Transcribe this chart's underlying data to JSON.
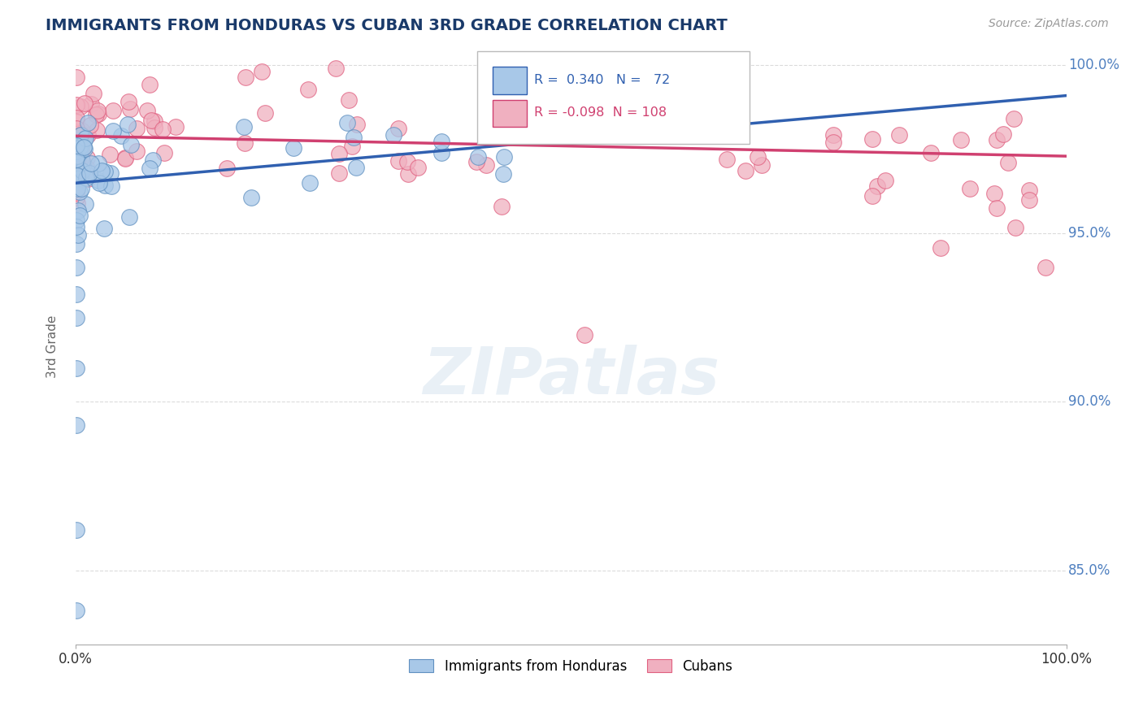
{
  "title": "IMMIGRANTS FROM HONDURAS VS CUBAN 3RD GRADE CORRELATION CHART",
  "source_text": "Source: ZipAtlas.com",
  "ylabel": "3rd Grade",
  "xlim": [
    0.0,
    1.0
  ],
  "ylim": [
    0.828,
    1.005
  ],
  "yticks": [
    0.85,
    0.9,
    0.95,
    1.0
  ],
  "ytick_labels": [
    "85.0%",
    "90.0%",
    "95.0%",
    "100.0%"
  ],
  "legend_R1": "0.340",
  "legend_N1": "72",
  "legend_R2": "-0.098",
  "legend_N2": "108",
  "label1": "Immigrants from Honduras",
  "label2": "Cubans",
  "color1": "#A8C8E8",
  "color2": "#F0B0C0",
  "edge1": "#6090C0",
  "edge2": "#E06080",
  "trendline_color1": "#3060B0",
  "trendline_color2": "#D04070",
  "title_color": "#1A3A6A",
  "axis_color": "#5080C0",
  "source_color": "#999999",
  "background_color": "#FFFFFF",
  "grid_color": "#CCCCCC"
}
